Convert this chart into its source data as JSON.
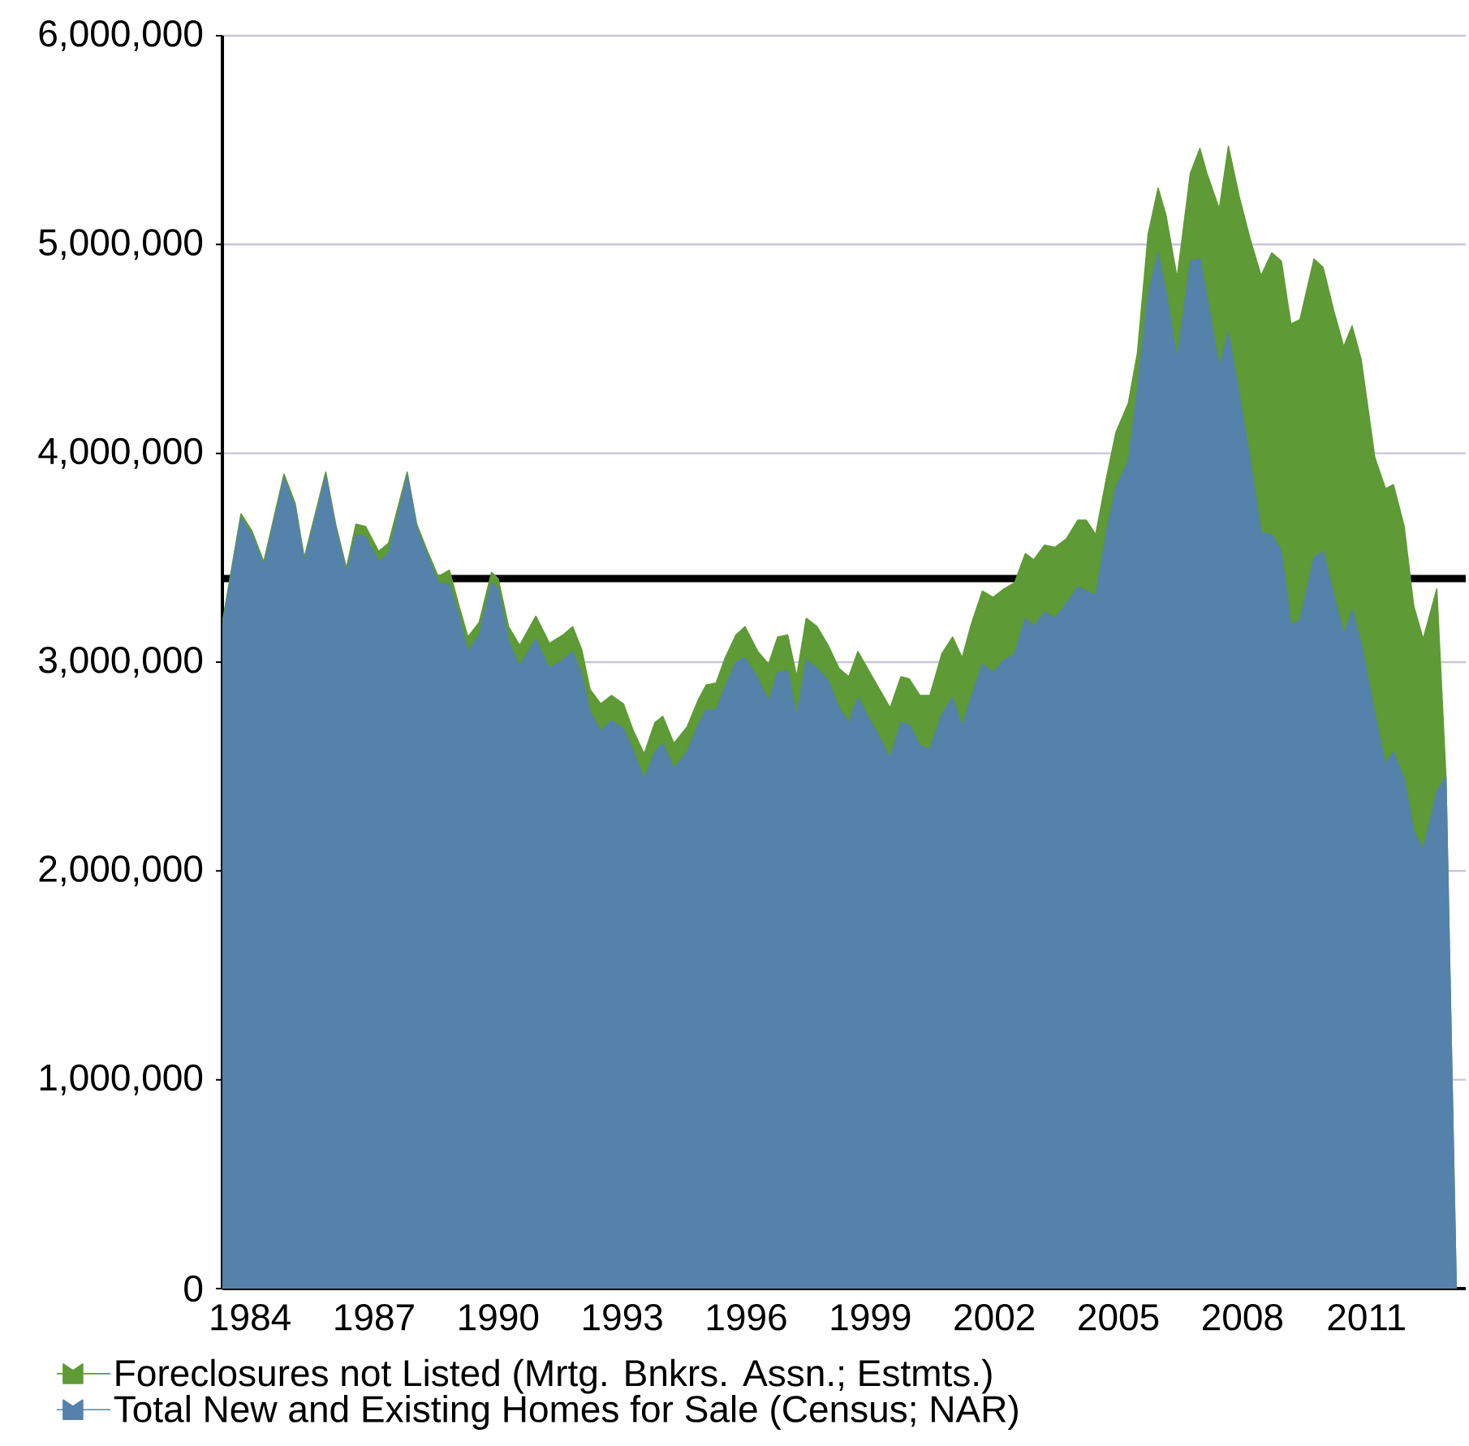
{
  "chart_data": {
    "type": "area",
    "stacked": true,
    "x": [
      1983.33,
      1983.78,
      1984.04,
      1984.33,
      1984.82,
      1985.09,
      1985.31,
      1985.83,
      1986.07,
      1986.33,
      1986.56,
      1986.79,
      1987.11,
      1987.35,
      1987.8,
      1988.03,
      1988.29,
      1988.55,
      1988.82,
      1989.05,
      1989.27,
      1989.54,
      1989.84,
      1990.0,
      1990.25,
      1990.52,
      1990.91,
      1991.24,
      1991.57,
      1991.8,
      1992.02,
      1992.22,
      1992.48,
      1992.74,
      1993.03,
      1993.27,
      1993.53,
      1993.79,
      1993.98,
      1994.25,
      1994.57,
      1994.84,
      1995.03,
      1995.27,
      1995.49,
      1995.75,
      1995.97,
      1996.28,
      1996.54,
      1996.76,
      1997.0,
      1997.22,
      1997.45,
      1997.71,
      1997.98,
      1998.24,
      1998.48,
      1998.7,
      1998.96,
      1999.22,
      1999.48,
      1999.74,
      1999.94,
      2000.2,
      2000.44,
      2000.73,
      2000.99,
      2001.22,
      2001.44,
      2001.71,
      2001.97,
      2002.23,
      2002.49,
      2002.75,
      2002.95,
      2003.21,
      2003.47,
      2003.74,
      2004.02,
      2004.22,
      2004.45,
      2004.72,
      2004.94,
      2005.24,
      2005.46,
      2005.72,
      2005.96,
      2006.15,
      2006.42,
      2006.74,
      2006.97,
      2007.14,
      2007.44,
      2007.66,
      2007.92,
      2008.18,
      2008.45,
      2008.71,
      2008.94,
      2009.17,
      2009.39,
      2009.73,
      2009.95,
      2010.21,
      2010.45,
      2010.65,
      2010.87,
      2011.2,
      2011.46,
      2011.65,
      2011.91,
      2012.14,
      2012.37,
      2012.7,
      2012.92,
      2013.17
    ],
    "series": [
      {
        "name": "Total New and Existing Homes for Sale (Census; NAR)",
        "color": "#5582ab",
        "values": [
          3170000,
          3690000,
          3610000,
          3460000,
          3880000,
          3740000,
          3480000,
          3890000,
          3640000,
          3430000,
          3610000,
          3600000,
          3480000,
          3520000,
          3890000,
          3640000,
          3510000,
          3380000,
          3370000,
          3220000,
          3050000,
          3130000,
          3380000,
          3350000,
          3100000,
          2980000,
          3110000,
          2970000,
          3010000,
          3050000,
          2940000,
          2760000,
          2670000,
          2720000,
          2680000,
          2570000,
          2440000,
          2570000,
          2610000,
          2490000,
          2570000,
          2700000,
          2770000,
          2770000,
          2880000,
          3000000,
          3020000,
          2920000,
          2810000,
          2950000,
          2960000,
          2740000,
          3010000,
          2970000,
          2910000,
          2780000,
          2710000,
          2830000,
          2730000,
          2640000,
          2540000,
          2710000,
          2700000,
          2600000,
          2580000,
          2750000,
          2830000,
          2690000,
          2830000,
          2990000,
          2950000,
          3010000,
          3040000,
          3210000,
          3170000,
          3240000,
          3210000,
          3280000,
          3360000,
          3340000,
          3320000,
          3630000,
          3840000,
          3960000,
          4310000,
          4760000,
          4960000,
          4770000,
          4450000,
          4920000,
          4930000,
          4750000,
          4410000,
          4580000,
          4280000,
          3970000,
          3620000,
          3610000,
          3530000,
          3180000,
          3200000,
          3500000,
          3530000,
          3320000,
          3130000,
          3250000,
          3090000,
          2750000,
          2510000,
          2570000,
          2440000,
          2190000,
          2100000,
          2380000,
          2450000,
          0
        ]
      },
      {
        "name": "Foreclosures not Listed (Mrtg. Bnkrs. Assn.; Estmts.)",
        "color": "#5e9a35",
        "values": [
          20000,
          20000,
          20000,
          20000,
          20000,
          20000,
          20000,
          20000,
          20000,
          20000,
          50000,
          50000,
          50000,
          50000,
          20000,
          20000,
          20000,
          30000,
          70000,
          50000,
          70000,
          60000,
          50000,
          50000,
          70000,
          100000,
          110000,
          120000,
          120000,
          120000,
          120000,
          110000,
          130000,
          120000,
          120000,
          100000,
          120000,
          140000,
          130000,
          120000,
          120000,
          120000,
          120000,
          130000,
          140000,
          130000,
          150000,
          130000,
          180000,
          170000,
          170000,
          190000,
          200000,
          200000,
          170000,
          190000,
          220000,
          220000,
          230000,
          230000,
          240000,
          220000,
          220000,
          240000,
          260000,
          290000,
          290000,
          330000,
          350000,
          350000,
          360000,
          340000,
          340000,
          310000,
          320000,
          320000,
          340000,
          310000,
          320000,
          340000,
          290000,
          260000,
          260000,
          280000,
          170000,
          290000,
          310000,
          370000,
          390000,
          420000,
          530000,
          590000,
          760000,
          890000,
          950000,
          1060000,
          1230000,
          1350000,
          1390000,
          1440000,
          1440000,
          1430000,
          1360000,
          1360000,
          1380000,
          1360000,
          1360000,
          1230000,
          1320000,
          1280000,
          1210000,
          1080000,
          1010000,
          970000,
          0,
          0
        ]
      }
    ],
    "xlim": [
      1983.33,
      2013.4
    ],
    "ylim": [
      0,
      6000000
    ],
    "xticks": [
      1984,
      1987,
      1990,
      1993,
      1996,
      1999,
      2002,
      2005,
      2008,
      2011
    ],
    "yticks": [
      0,
      {
        "value": 1000000,
        "label": "1,000,000"
      },
      {
        "value": 2000000,
        "label": "2,000,000"
      },
      {
        "value": 3000000,
        "label": "3,000,000"
      },
      {
        "value": 4000000,
        "label": "4,000,000"
      },
      {
        "value": 5000000,
        "label": "5,000,000"
      },
      {
        "value": 6000000,
        "label": "6,000,000"
      }
    ],
    "grid": "y",
    "legend": "bottom",
    "ref_lines": [
      {
        "axis": "y",
        "value": 3400000,
        "color": "#000000"
      }
    ]
  }
}
